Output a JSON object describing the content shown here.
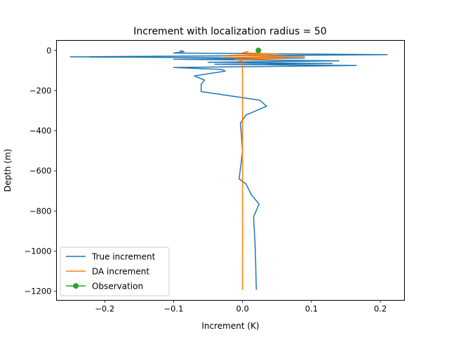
{
  "chart_data": {
    "type": "line",
    "title": "Increment with localization radius = 50",
    "xlabel": "Increment (K)",
    "ylabel": "Depth (m)",
    "xlim": [
      -0.27,
      0.235
    ],
    "ylim": [
      -1245,
      50
    ],
    "x_ticks": [
      -0.2,
      -0.1,
      0.0,
      0.1,
      0.2
    ],
    "x_tick_labels": [
      "−0.2",
      "−0.1",
      "0.0",
      "0.1",
      "0.2"
    ],
    "y_ticks": [
      0,
      -200,
      -400,
      -600,
      -800,
      -1000,
      -1200
    ],
    "y_tick_labels": [
      "0",
      "−200",
      "−400",
      "−600",
      "−800",
      "−1000",
      "−1200"
    ],
    "grid": false,
    "legend_position": "lower-left",
    "series": [
      {
        "name": "True increment",
        "color": "#1f77b4",
        "style": "line",
        "points": [
          [
            -0.09,
            -1
          ],
          [
            -0.085,
            -6
          ],
          [
            -0.1,
            -13
          ],
          [
            0.21,
            -21
          ],
          [
            -0.25,
            -32
          ],
          [
            0.09,
            -38
          ],
          [
            -0.1,
            -44
          ],
          [
            0.14,
            -52
          ],
          [
            -0.05,
            -59
          ],
          [
            0.13,
            -65
          ],
          [
            -0.04,
            -69
          ],
          [
            0.165,
            -75
          ],
          [
            -0.1,
            -85
          ],
          [
            -0.03,
            -95
          ],
          [
            -0.025,
            -103
          ],
          [
            -0.07,
            -127
          ],
          [
            -0.055,
            -148
          ],
          [
            -0.06,
            -168
          ],
          [
            -0.06,
            -205
          ],
          [
            0.025,
            -248
          ],
          [
            0.035,
            -278
          ],
          [
            0.005,
            -322
          ],
          [
            -0.003,
            -362
          ],
          [
            -0.002,
            -405
          ],
          [
            0.0,
            -500
          ],
          [
            -0.002,
            -560
          ],
          [
            -0.005,
            -640
          ],
          [
            0.005,
            -665
          ],
          [
            0.013,
            -720
          ],
          [
            0.024,
            -765
          ],
          [
            0.016,
            -830
          ],
          [
            0.018,
            -950
          ],
          [
            0.019,
            -1050
          ],
          [
            0.02,
            -1190
          ]
        ]
      },
      {
        "name": "DA increment",
        "color": "#ff7f0e",
        "style": "line",
        "points": [
          [
            0.005,
            -8
          ],
          [
            0.008,
            -5
          ],
          [
            0.0,
            -12
          ],
          [
            0.05,
            -18
          ],
          [
            -0.02,
            -25
          ],
          [
            0.09,
            -30
          ],
          [
            -0.03,
            -35
          ],
          [
            0.06,
            -40
          ],
          [
            -0.01,
            -47
          ],
          [
            0.0,
            -52
          ],
          [
            0.0,
            -1190
          ]
        ]
      },
      {
        "name": "Observation",
        "color": "#2ca02c",
        "style": "marker",
        "points": [
          [
            0.023,
            0
          ]
        ]
      }
    ]
  }
}
